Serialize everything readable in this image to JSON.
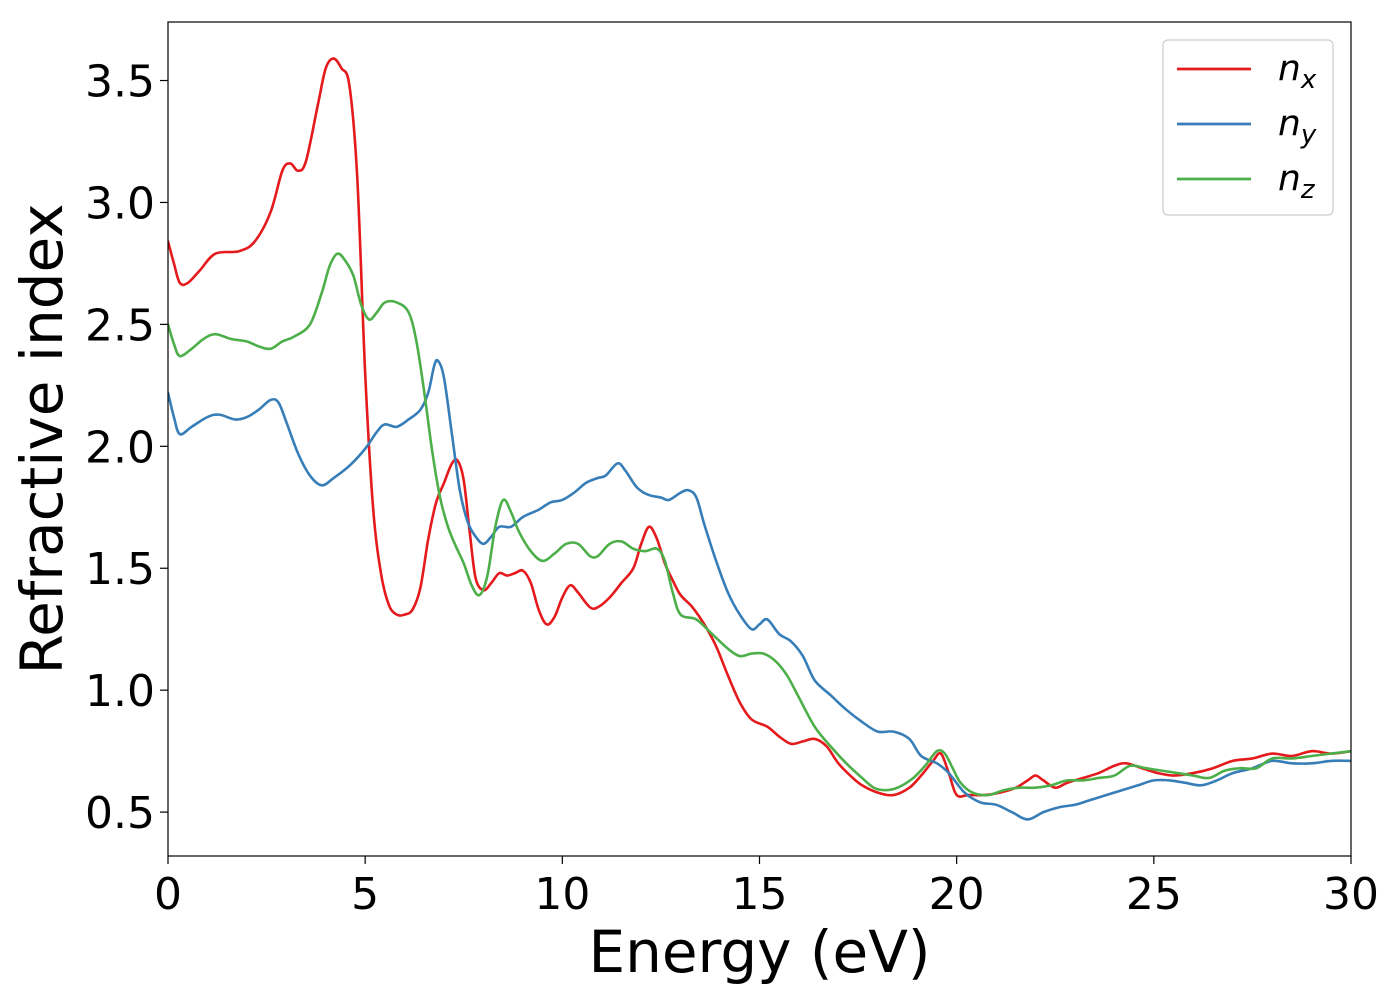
{
  "chart_data": {
    "type": "line",
    "title": "",
    "xlabel": "Energy (eV)",
    "ylabel": "Refractive index",
    "xlim": [
      0,
      30
    ],
    "ylim": [
      0.32,
      3.74
    ],
    "grid": false,
    "legend_position": "top-right",
    "xticks": [
      0,
      5,
      10,
      15,
      20,
      25,
      30
    ],
    "xtick_labels": [
      "0",
      "5",
      "10",
      "15",
      "20",
      "25",
      "30"
    ],
    "yticks": [
      0.5,
      1.0,
      1.5,
      2.0,
      2.5,
      3.0,
      3.5
    ],
    "ytick_labels": [
      "0.5",
      "1.0",
      "1.5",
      "2.0",
      "2.5",
      "3.0",
      "3.5"
    ],
    "series": [
      {
        "name": "n_x",
        "legend_base": "n",
        "legend_sub": "x",
        "color": "#e41a1c",
        "points": [
          [
            0,
            2.84
          ],
          [
            0.15,
            2.75
          ],
          [
            0.3,
            2.67
          ],
          [
            0.5,
            2.67
          ],
          [
            0.8,
            2.72
          ],
          [
            1.2,
            2.79
          ],
          [
            1.8,
            2.8
          ],
          [
            2.2,
            2.84
          ],
          [
            2.6,
            2.96
          ],
          [
            2.9,
            3.13
          ],
          [
            3.1,
            3.16
          ],
          [
            3.3,
            3.13
          ],
          [
            3.5,
            3.17
          ],
          [
            3.8,
            3.4
          ],
          [
            4.0,
            3.55
          ],
          [
            4.2,
            3.59
          ],
          [
            4.4,
            3.55
          ],
          [
            4.6,
            3.48
          ],
          [
            4.8,
            3.1
          ],
          [
            5.0,
            2.3
          ],
          [
            5.2,
            1.75
          ],
          [
            5.4,
            1.48
          ],
          [
            5.6,
            1.35
          ],
          [
            5.8,
            1.31
          ],
          [
            6.0,
            1.31
          ],
          [
            6.2,
            1.33
          ],
          [
            6.4,
            1.42
          ],
          [
            6.6,
            1.62
          ],
          [
            6.8,
            1.77
          ],
          [
            7.0,
            1.85
          ],
          [
            7.2,
            1.93
          ],
          [
            7.35,
            1.94
          ],
          [
            7.5,
            1.86
          ],
          [
            7.65,
            1.65
          ],
          [
            7.8,
            1.46
          ],
          [
            8.0,
            1.41
          ],
          [
            8.2,
            1.44
          ],
          [
            8.4,
            1.48
          ],
          [
            8.6,
            1.47
          ],
          [
            8.8,
            1.48
          ],
          [
            9.0,
            1.49
          ],
          [
            9.2,
            1.44
          ],
          [
            9.4,
            1.33
          ],
          [
            9.6,
            1.27
          ],
          [
            9.8,
            1.3
          ],
          [
            10.0,
            1.38
          ],
          [
            10.2,
            1.43
          ],
          [
            10.4,
            1.4
          ],
          [
            10.7,
            1.34
          ],
          [
            10.9,
            1.34
          ],
          [
            11.2,
            1.38
          ],
          [
            11.5,
            1.44
          ],
          [
            11.8,
            1.5
          ],
          [
            12.0,
            1.6
          ],
          [
            12.2,
            1.67
          ],
          [
            12.4,
            1.62
          ],
          [
            12.6,
            1.52
          ],
          [
            12.8,
            1.45
          ],
          [
            13.0,
            1.39
          ],
          [
            13.3,
            1.34
          ],
          [
            13.6,
            1.27
          ],
          [
            13.9,
            1.18
          ],
          [
            14.2,
            1.06
          ],
          [
            14.5,
            0.95
          ],
          [
            14.8,
            0.88
          ],
          [
            15.2,
            0.85
          ],
          [
            15.5,
            0.81
          ],
          [
            15.8,
            0.78
          ],
          [
            16.1,
            0.79
          ],
          [
            16.4,
            0.8
          ],
          [
            16.7,
            0.77
          ],
          [
            17.0,
            0.7
          ],
          [
            17.3,
            0.65
          ],
          [
            17.6,
            0.61
          ],
          [
            18.0,
            0.58
          ],
          [
            18.4,
            0.57
          ],
          [
            18.8,
            0.6
          ],
          [
            19.1,
            0.65
          ],
          [
            19.4,
            0.71
          ],
          [
            19.6,
            0.74
          ],
          [
            19.8,
            0.66
          ],
          [
            20.0,
            0.57
          ],
          [
            20.3,
            0.57
          ],
          [
            20.7,
            0.57
          ],
          [
            21.1,
            0.58
          ],
          [
            21.5,
            0.6
          ],
          [
            21.8,
            0.63
          ],
          [
            22.0,
            0.65
          ],
          [
            22.2,
            0.63
          ],
          [
            22.5,
            0.6
          ],
          [
            22.8,
            0.62
          ],
          [
            23.2,
            0.64
          ],
          [
            23.6,
            0.66
          ],
          [
            24.0,
            0.69
          ],
          [
            24.3,
            0.7
          ],
          [
            24.7,
            0.68
          ],
          [
            25.1,
            0.66
          ],
          [
            25.5,
            0.65
          ],
          [
            26.0,
            0.66
          ],
          [
            26.5,
            0.68
          ],
          [
            27.0,
            0.71
          ],
          [
            27.5,
            0.72
          ],
          [
            28.0,
            0.74
          ],
          [
            28.5,
            0.73
          ],
          [
            29.0,
            0.75
          ],
          [
            29.5,
            0.74
          ],
          [
            30.0,
            0.75
          ]
        ]
      },
      {
        "name": "n_y",
        "legend_base": "n",
        "legend_sub": "y",
        "color": "#377eb8",
        "points": [
          [
            0,
            2.22
          ],
          [
            0.15,
            2.12
          ],
          [
            0.3,
            2.05
          ],
          [
            0.6,
            2.08
          ],
          [
            1.0,
            2.12
          ],
          [
            1.3,
            2.13
          ],
          [
            1.7,
            2.11
          ],
          [
            2.0,
            2.12
          ],
          [
            2.3,
            2.15
          ],
          [
            2.6,
            2.19
          ],
          [
            2.8,
            2.18
          ],
          [
            3.0,
            2.1
          ],
          [
            3.3,
            1.97
          ],
          [
            3.6,
            1.88
          ],
          [
            3.9,
            1.84
          ],
          [
            4.2,
            1.87
          ],
          [
            4.6,
            1.92
          ],
          [
            5.0,
            1.99
          ],
          [
            5.3,
            2.06
          ],
          [
            5.5,
            2.09
          ],
          [
            5.8,
            2.08
          ],
          [
            6.1,
            2.11
          ],
          [
            6.4,
            2.15
          ],
          [
            6.6,
            2.22
          ],
          [
            6.75,
            2.33
          ],
          [
            6.85,
            2.35
          ],
          [
            7.0,
            2.28
          ],
          [
            7.2,
            2.05
          ],
          [
            7.4,
            1.82
          ],
          [
            7.6,
            1.69
          ],
          [
            7.8,
            1.63
          ],
          [
            8.0,
            1.6
          ],
          [
            8.2,
            1.63
          ],
          [
            8.4,
            1.67
          ],
          [
            8.7,
            1.67
          ],
          [
            9.0,
            1.71
          ],
          [
            9.4,
            1.74
          ],
          [
            9.7,
            1.77
          ],
          [
            10.0,
            1.78
          ],
          [
            10.3,
            1.81
          ],
          [
            10.6,
            1.85
          ],
          [
            10.9,
            1.87
          ],
          [
            11.1,
            1.88
          ],
          [
            11.4,
            1.93
          ],
          [
            11.6,
            1.9
          ],
          [
            11.9,
            1.83
          ],
          [
            12.2,
            1.8
          ],
          [
            12.5,
            1.79
          ],
          [
            12.7,
            1.78
          ],
          [
            13.0,
            1.81
          ],
          [
            13.2,
            1.82
          ],
          [
            13.4,
            1.79
          ],
          [
            13.6,
            1.68
          ],
          [
            13.9,
            1.53
          ],
          [
            14.2,
            1.4
          ],
          [
            14.5,
            1.31
          ],
          [
            14.8,
            1.25
          ],
          [
            15.0,
            1.27
          ],
          [
            15.2,
            1.29
          ],
          [
            15.5,
            1.23
          ],
          [
            15.8,
            1.2
          ],
          [
            16.1,
            1.14
          ],
          [
            16.4,
            1.04
          ],
          [
            16.8,
            0.98
          ],
          [
            17.2,
            0.92
          ],
          [
            17.6,
            0.87
          ],
          [
            18.0,
            0.83
          ],
          [
            18.4,
            0.83
          ],
          [
            18.8,
            0.8
          ],
          [
            19.1,
            0.73
          ],
          [
            19.5,
            0.7
          ],
          [
            19.8,
            0.66
          ],
          [
            20.2,
            0.58
          ],
          [
            20.6,
            0.54
          ],
          [
            21.0,
            0.53
          ],
          [
            21.4,
            0.5
          ],
          [
            21.8,
            0.47
          ],
          [
            22.2,
            0.5
          ],
          [
            22.6,
            0.52
          ],
          [
            23.0,
            0.53
          ],
          [
            23.4,
            0.55
          ],
          [
            23.8,
            0.57
          ],
          [
            24.2,
            0.59
          ],
          [
            24.6,
            0.61
          ],
          [
            25.0,
            0.63
          ],
          [
            25.4,
            0.63
          ],
          [
            25.8,
            0.62
          ],
          [
            26.2,
            0.61
          ],
          [
            26.6,
            0.63
          ],
          [
            27.0,
            0.66
          ],
          [
            27.5,
            0.68
          ],
          [
            28.0,
            0.71
          ],
          [
            28.5,
            0.7
          ],
          [
            29.0,
            0.7
          ],
          [
            29.5,
            0.71
          ],
          [
            30.0,
            0.71
          ]
        ]
      },
      {
        "name": "n_z",
        "legend_base": "n",
        "legend_sub": "z",
        "color": "#4daf4a",
        "points": [
          [
            0,
            2.5
          ],
          [
            0.15,
            2.42
          ],
          [
            0.3,
            2.37
          ],
          [
            0.6,
            2.4
          ],
          [
            0.9,
            2.44
          ],
          [
            1.2,
            2.46
          ],
          [
            1.6,
            2.44
          ],
          [
            2.0,
            2.43
          ],
          [
            2.3,
            2.41
          ],
          [
            2.6,
            2.4
          ],
          [
            2.9,
            2.43
          ],
          [
            3.2,
            2.45
          ],
          [
            3.6,
            2.5
          ],
          [
            3.9,
            2.63
          ],
          [
            4.1,
            2.74
          ],
          [
            4.3,
            2.79
          ],
          [
            4.5,
            2.76
          ],
          [
            4.7,
            2.7
          ],
          [
            4.9,
            2.58
          ],
          [
            5.1,
            2.52
          ],
          [
            5.3,
            2.55
          ],
          [
            5.5,
            2.59
          ],
          [
            5.8,
            2.59
          ],
          [
            6.1,
            2.55
          ],
          [
            6.3,
            2.43
          ],
          [
            6.5,
            2.22
          ],
          [
            6.7,
            1.98
          ],
          [
            6.9,
            1.79
          ],
          [
            7.1,
            1.67
          ],
          [
            7.3,
            1.59
          ],
          [
            7.5,
            1.52
          ],
          [
            7.7,
            1.43
          ],
          [
            7.9,
            1.39
          ],
          [
            8.1,
            1.47
          ],
          [
            8.3,
            1.67
          ],
          [
            8.5,
            1.78
          ],
          [
            8.7,
            1.73
          ],
          [
            8.9,
            1.65
          ],
          [
            9.2,
            1.57
          ],
          [
            9.5,
            1.53
          ],
          [
            9.8,
            1.56
          ],
          [
            10.1,
            1.6
          ],
          [
            10.4,
            1.6
          ],
          [
            10.7,
            1.55
          ],
          [
            10.9,
            1.55
          ],
          [
            11.2,
            1.6
          ],
          [
            11.5,
            1.61
          ],
          [
            11.8,
            1.58
          ],
          [
            12.1,
            1.57
          ],
          [
            12.4,
            1.58
          ],
          [
            12.6,
            1.53
          ],
          [
            12.8,
            1.4
          ],
          [
            13.0,
            1.31
          ],
          [
            13.4,
            1.29
          ],
          [
            13.8,
            1.23
          ],
          [
            14.2,
            1.17
          ],
          [
            14.5,
            1.14
          ],
          [
            14.8,
            1.15
          ],
          [
            15.1,
            1.15
          ],
          [
            15.4,
            1.12
          ],
          [
            15.7,
            1.06
          ],
          [
            16.0,
            0.97
          ],
          [
            16.4,
            0.85
          ],
          [
            16.8,
            0.77
          ],
          [
            17.2,
            0.7
          ],
          [
            17.6,
            0.64
          ],
          [
            17.9,
            0.6
          ],
          [
            18.2,
            0.59
          ],
          [
            18.5,
            0.6
          ],
          [
            18.9,
            0.64
          ],
          [
            19.2,
            0.69
          ],
          [
            19.5,
            0.75
          ],
          [
            19.7,
            0.74
          ],
          [
            19.9,
            0.68
          ],
          [
            20.1,
            0.62
          ],
          [
            20.4,
            0.58
          ],
          [
            20.8,
            0.57
          ],
          [
            21.2,
            0.59
          ],
          [
            21.6,
            0.6
          ],
          [
            22.0,
            0.6
          ],
          [
            22.4,
            0.61
          ],
          [
            22.8,
            0.63
          ],
          [
            23.2,
            0.63
          ],
          [
            23.6,
            0.64
          ],
          [
            24.0,
            0.65
          ],
          [
            24.4,
            0.69
          ],
          [
            24.8,
            0.68
          ],
          [
            25.2,
            0.67
          ],
          [
            25.6,
            0.66
          ],
          [
            26.0,
            0.65
          ],
          [
            26.4,
            0.64
          ],
          [
            26.8,
            0.67
          ],
          [
            27.2,
            0.68
          ],
          [
            27.6,
            0.68
          ],
          [
            28.0,
            0.72
          ],
          [
            28.5,
            0.72
          ],
          [
            29.0,
            0.73
          ],
          [
            29.5,
            0.74
          ],
          [
            30.0,
            0.75
          ]
        ]
      }
    ]
  }
}
